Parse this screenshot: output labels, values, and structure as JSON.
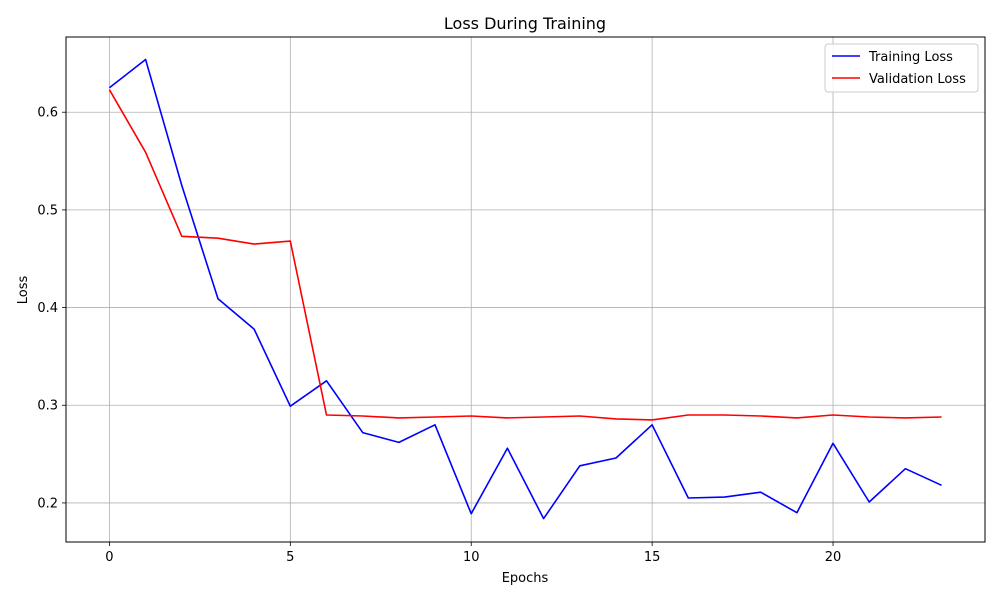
{
  "chart_data": {
    "type": "line",
    "title": "Loss During Training",
    "xlabel": "Epochs",
    "ylabel": "Loss",
    "xlim": [
      -1.2,
      24.2
    ],
    "ylim": [
      0.16,
      0.677
    ],
    "xticks": [
      0,
      5,
      10,
      15,
      20
    ],
    "yticks": [
      0.2,
      0.3,
      0.4,
      0.5,
      0.6
    ],
    "xtick_labels": [
      "0",
      "5",
      "10",
      "15",
      "20"
    ],
    "ytick_labels": [
      "0.2",
      "0.3",
      "0.4",
      "0.5",
      "0.6"
    ],
    "grid": true,
    "legend_position": "top-right",
    "x": [
      0,
      1,
      2,
      3,
      4,
      5,
      6,
      7,
      8,
      9,
      10,
      11,
      12,
      13,
      14,
      15,
      16,
      17,
      18,
      19,
      20,
      21,
      22,
      23
    ],
    "series": [
      {
        "name": "Training Loss",
        "color": "#0000ff",
        "values": [
          0.625,
          0.654,
          0.525,
          0.409,
          0.378,
          0.299,
          0.325,
          0.272,
          0.262,
          0.28,
          0.189,
          0.256,
          0.184,
          0.238,
          0.246,
          0.28,
          0.205,
          0.206,
          0.211,
          0.19,
          0.261,
          0.201,
          0.235,
          0.218
        ]
      },
      {
        "name": "Validation Loss",
        "color": "#ff0000",
        "values": [
          0.623,
          0.559,
          0.473,
          0.471,
          0.465,
          0.468,
          0.29,
          0.289,
          0.287,
          0.288,
          0.289,
          0.287,
          0.288,
          0.289,
          0.286,
          0.285,
          0.29,
          0.29,
          0.289,
          0.287,
          0.29,
          0.288,
          0.287,
          0.288
        ]
      }
    ]
  }
}
